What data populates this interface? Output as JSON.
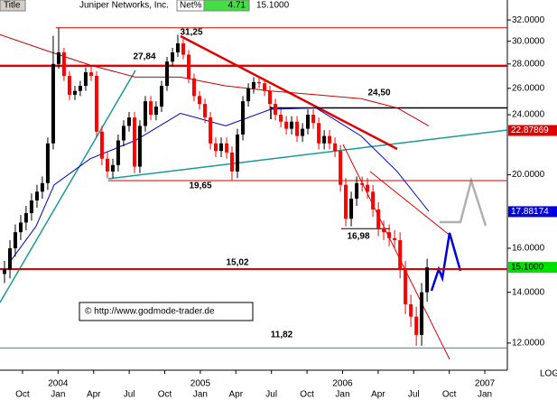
{
  "header": {
    "title_tag": "Title",
    "name": "Juniper Networks, Inc.",
    "net_label": "Net%",
    "net_value": "4.71",
    "last": "15.1000"
  },
  "chart_data": {
    "type": "candlestick",
    "log_scale": true,
    "up_color": "#000000",
    "down_color": "#ff0000",
    "x": [
      -0.52,
      -0.06,
      0.39,
      0.85,
      1.3,
      1.76,
      2.22,
      2.67,
      3.13,
      3.59,
      4.05,
      4.5,
      4.96,
      5.42,
      5.87,
      6.33,
      6.79,
      7.25,
      7.7,
      8.16,
      8.62,
      9.07,
      9.53,
      9.99,
      10.45,
      10.9,
      11.36,
      11.82,
      12.27,
      12.73,
      13.19,
      13.65,
      14.1,
      14.56,
      15.02,
      15.47,
      15.93,
      16.39,
      16.85,
      17.3,
      17.76,
      18.22,
      18.67,
      19.13,
      19.59,
      20.05,
      20.5,
      20.96,
      21.42,
      21.87,
      22.33,
      22.79,
      23.25,
      23.7,
      24.16,
      24.62,
      25.07,
      25.53,
      25.99,
      26.45,
      26.9,
      27.36,
      27.82,
      28.27,
      28.73,
      29.19,
      29.65,
      30.1,
      30.56,
      31.02,
      31.47,
      31.93,
      32.39,
      32.85,
      33.3,
      33.76,
      34.22,
      34.67,
      35.13
    ],
    "open": [
      14.8,
      15.0,
      16.0,
      16.8,
      17.3,
      17.8,
      18.5,
      19.0,
      19.5,
      22.0,
      28.0,
      29.0,
      27.0,
      25.5,
      25.8,
      26.2,
      27.3,
      27.0,
      22.8,
      21.0,
      20.2,
      20.6,
      22.2,
      23.2,
      23.8,
      20.5,
      23.2,
      25.0,
      24.0,
      24.6,
      26.2,
      28.2,
      29.0,
      29.8,
      28.8,
      26.8,
      25.4,
      24.8,
      23.8,
      22.0,
      21.5,
      22.0,
      21.4,
      20.2,
      22.6,
      25.0,
      26.0,
      26.5,
      26.4,
      25.8,
      24.8,
      24.0,
      23.5,
      23.0,
      23.5,
      22.5,
      23.0,
      24.0,
      23.4,
      22.0,
      22.5,
      22.0,
      21.5,
      19.4,
      17.5,
      18.6,
      19.5,
      19.4,
      19.0,
      18.0,
      17.0,
      16.8,
      16.5,
      16.4,
      15.0,
      13.5,
      13.0,
      12.3,
      14.0
    ],
    "high": [
      15.4,
      16.4,
      17.2,
      17.7,
      18.2,
      18.9,
      19.4,
      19.9,
      22.4,
      30.5,
      31.25,
      29.4,
      27.4,
      26.2,
      26.6,
      27.7,
      27.84,
      27.4,
      23.2,
      21.4,
      21.0,
      22.6,
      23.6,
      24.2,
      24.2,
      23.6,
      25.4,
      25.4,
      25.0,
      26.6,
      28.6,
      29.4,
      30.6,
      30.2,
      29.2,
      27.2,
      25.8,
      25.2,
      24.2,
      22.4,
      22.4,
      22.4,
      21.8,
      23.0,
      25.4,
      26.4,
      26.9,
      26.9,
      26.8,
      26.2,
      25.2,
      24.4,
      23.9,
      23.9,
      23.9,
      23.4,
      24.4,
      24.4,
      23.8,
      22.9,
      22.9,
      22.4,
      21.9,
      19.8,
      19.0,
      19.9,
      19.9,
      19.8,
      19.4,
      18.4,
      17.4,
      17.2,
      16.9,
      16.8,
      15.4,
      13.9,
      13.4,
      14.4,
      15.5
    ],
    "low": [
      14.4,
      14.6,
      15.6,
      16.4,
      16.9,
      17.4,
      18.1,
      18.6,
      19.1,
      21.6,
      27.6,
      26.6,
      25.1,
      25.1,
      25.4,
      25.8,
      26.6,
      22.4,
      20.6,
      19.8,
      19.8,
      20.2,
      21.8,
      22.8,
      20.1,
      20.1,
      22.8,
      23.6,
      23.6,
      24.2,
      25.8,
      27.8,
      28.6,
      28.4,
      26.4,
      25.0,
      24.4,
      23.4,
      21.6,
      21.1,
      21.1,
      21.0,
      19.65,
      19.8,
      22.2,
      24.6,
      25.6,
      26.0,
      25.4,
      24.4,
      23.6,
      23.1,
      22.6,
      22.6,
      22.1,
      22.1,
      22.6,
      23.0,
      21.6,
      21.6,
      21.6,
      21.1,
      19.0,
      17.1,
      17.1,
      18.2,
      19.0,
      18.6,
      17.6,
      16.6,
      16.4,
      16.1,
      16.0,
      14.6,
      13.1,
      12.6,
      11.9,
      11.9,
      13.6
    ],
    "close": [
      15.0,
      16.0,
      16.8,
      17.3,
      17.8,
      18.5,
      19.0,
      19.5,
      22.0,
      28.0,
      29.0,
      27.0,
      25.5,
      25.8,
      26.2,
      27.3,
      27.0,
      22.8,
      21.0,
      20.2,
      20.6,
      22.2,
      23.2,
      23.8,
      20.5,
      23.2,
      25.0,
      24.0,
      24.6,
      26.2,
      28.2,
      29.0,
      29.8,
      28.8,
      26.8,
      25.4,
      24.8,
      23.8,
      22.0,
      21.5,
      22.0,
      21.4,
      20.2,
      22.6,
      25.0,
      26.0,
      26.5,
      26.4,
      25.8,
      24.8,
      24.0,
      23.5,
      23.0,
      23.5,
      22.5,
      23.0,
      24.0,
      23.4,
      22.0,
      22.5,
      22.0,
      21.5,
      19.4,
      17.5,
      18.6,
      19.5,
      19.4,
      19.0,
      18.0,
      17.0,
      16.8,
      16.5,
      16.4,
      15.0,
      13.5,
      13.0,
      12.3,
      14.0,
      15.1
    ],
    "overlays": [
      {
        "color": "#cc0000",
        "x": [
          -0.9,
          2.9,
          6.71,
          10.52,
          14.33,
          18.14,
          21.94,
          25.75,
          29.56,
          32.6,
          35.27
        ],
        "values": [
          30.6,
          29.2,
          27.9,
          26.9,
          26.9,
          26.2,
          25.8,
          25.5,
          25.2,
          24.5,
          23.2
        ]
      },
      {
        "color": "#0000cc",
        "x": [
          -0.14,
          2.14,
          3.67,
          6.71,
          10.52,
          14.33,
          18.14,
          21.94,
          25.75,
          29.56,
          32.6,
          35.27
        ],
        "values": [
          15.3,
          17.1,
          19.4,
          21.0,
          22.2,
          24.1,
          23.2,
          24.4,
          24.5,
          22.5,
          20.2,
          17.9
        ]
      }
    ],
    "levels": [
      {
        "value": 31.25,
        "label": "31,25"
      },
      {
        "value": 27.84,
        "label": "27,84"
      },
      {
        "value": 24.5,
        "label": "24,50"
      },
      {
        "value": 19.65,
        "label": "19,65"
      },
      {
        "value": 16.98,
        "label": "16,98"
      },
      {
        "value": 15.02,
        "label": "15,02"
      },
      {
        "value": 11.82,
        "label": "11,82"
      }
    ],
    "price_labels": [
      {
        "value": 22.87869,
        "label": "22.87869",
        "color": "#e00000"
      },
      {
        "value": 17.88174,
        "label": "17.88174",
        "color": "#0000e0"
      },
      {
        "value": 15.1,
        "label": "15.1000",
        "color": "#00e000"
      }
    ],
    "ylim": [
      11.05,
      34
    ],
    "yticks": [
      {
        "value": 12,
        "label": "12.0000"
      },
      {
        "value": 14,
        "label": "14.0000"
      },
      {
        "value": 16,
        "label": "16.0000"
      },
      {
        "value": 20,
        "label": "20.0000"
      },
      {
        "value": 24,
        "label": "24.0000"
      },
      {
        "value": 26,
        "label": "26.0000"
      },
      {
        "value": 28,
        "label": "28.0000"
      },
      {
        "value": 30,
        "label": "30.0000"
      },
      {
        "value": 32,
        "label": "32.0000"
      }
    ],
    "xlim": [
      -0.9,
      41.9
    ],
    "xticks": [
      {
        "value": 1,
        "label": "Oct"
      },
      {
        "value": 4,
        "label": "Jan"
      },
      {
        "value": 7,
        "label": "Apr"
      },
      {
        "value": 10,
        "label": "Jul"
      },
      {
        "value": 13,
        "label": "Oct"
      },
      {
        "value": 16,
        "label": "Jan"
      },
      {
        "value": 19,
        "label": "Apr"
      },
      {
        "value": 22,
        "label": "Jul"
      },
      {
        "value": 25,
        "label": "Oct"
      },
      {
        "value": 28,
        "label": "Jan"
      },
      {
        "value": 31,
        "label": "Apr"
      },
      {
        "value": 34,
        "label": "Jul"
      },
      {
        "value": 37,
        "label": "Oct"
      },
      {
        "value": 40,
        "label": "Jan"
      }
    ],
    "year_labels": [
      {
        "value": 4,
        "label": "2004"
      },
      {
        "value": 16,
        "label": "2005"
      },
      {
        "value": 28,
        "label": "2006"
      },
      {
        "value": 40,
        "label": "2007"
      }
    ],
    "copyright": "© http://www.godmode-trader.de",
    "scale_note": "LOG"
  }
}
